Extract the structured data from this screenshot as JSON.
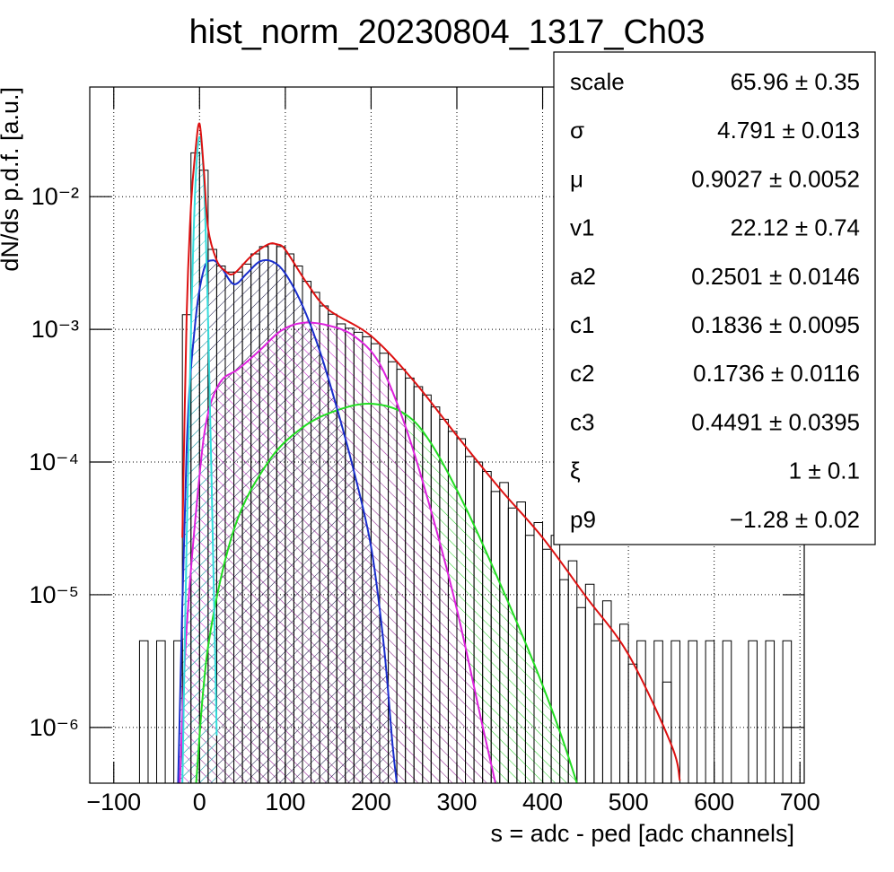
{
  "chart_data": {
    "type": "histogram-fit",
    "title": "hist_norm_20230804_1317_Ch03",
    "x_label": "s = adc - ped [adc channels]",
    "y_label": "dN/ds p.d.f. [a.u.]",
    "log_y": true,
    "grid": true,
    "xlim": [
      -128,
      705
    ],
    "ylim": [
      3.8e-07,
      0.067
    ],
    "xticks": [
      {
        "value": -100,
        "label": "−100"
      },
      0,
      100,
      200,
      300,
      400,
      500,
      600,
      700
    ],
    "yticks": [
      {
        "value": 1e-06,
        "label": "10⁻⁶"
      },
      {
        "value": 1e-05,
        "label": "10⁻⁵"
      },
      {
        "value": 0.0001,
        "label": "10⁻⁴"
      },
      {
        "value": 0.001,
        "label": "10⁻³"
      },
      {
        "value": 0.01,
        "label": "10⁻²"
      }
    ],
    "histogram": {
      "color": "#000000",
      "bins": [
        -130,
        -120,
        -110,
        -100,
        -90,
        -80,
        -70,
        -60,
        -50,
        -40,
        -30,
        -20,
        -10,
        0,
        10,
        20,
        30,
        40,
        50,
        60,
        70,
        80,
        90,
        100,
        110,
        120,
        130,
        140,
        150,
        160,
        170,
        180,
        190,
        200,
        210,
        220,
        230,
        240,
        250,
        260,
        270,
        280,
        290,
        300,
        310,
        320,
        330,
        340,
        350,
        360,
        370,
        380,
        390,
        400,
        410,
        420,
        430,
        440,
        450,
        460,
        470,
        480,
        490,
        500,
        510,
        520,
        530,
        540,
        550,
        560,
        570,
        580,
        590,
        600,
        610,
        620,
        630,
        640,
        650,
        660,
        670,
        680,
        690,
        700
      ],
      "values": [
        null,
        null,
        null,
        null,
        null,
        null,
        4.5e-06,
        null,
        4.5e-06,
        null,
        4.5e-06,
        0.00129,
        0.0214,
        0.0158,
        0.004,
        0.003,
        0.0027,
        0.0027,
        0.0031,
        0.0037,
        0.0042,
        0.0044,
        0.0042,
        0.0037,
        0.003,
        0.0023,
        0.0019,
        0.0015,
        0.0013,
        0.0011,
        0.00102,
        0.00095,
        0.00088,
        0.00078,
        0.00066,
        0.00057,
        0.0005,
        0.00043,
        0.00037,
        0.00032,
        0.00026,
        0.00021,
        0.00017,
        0.00015,
        0.00011,
        0.0001,
        8.5e-05,
        6e-05,
        7e-05,
        4.5e-05,
        5e-05,
        2.8e-05,
        3.5e-05,
        2.2e-05,
        2.8e-05,
        1.3e-05,
        1.8e-05,
        8e-06,
        1.2e-05,
        6e-06,
        9e-06,
        4.5e-06,
        6e-06,
        3e-06,
        4.5e-06,
        null,
        4.5e-06,
        2.2e-06,
        4.5e-06,
        null,
        4.5e-06,
        null,
        4.5e-06,
        null,
        4.5e-06,
        null,
        null,
        4.5e-06,
        null,
        4.5e-06,
        null,
        4.5e-06,
        null
      ]
    },
    "series": [
      {
        "color": "#22dd22",
        "hatch_color": "#22cc22",
        "hatch_angle": -45,
        "x": [
          -4,
          10,
          40,
          80,
          120,
          160,
          200,
          240,
          270,
          310,
          350,
          390,
          420,
          440
        ],
        "values": [
          3.8e-07,
          4.07e-06,
          3.09e-05,
          0.0001,
          0.000182,
          0.000245,
          0.000275,
          0.000229,
          0.000138,
          4.57e-05,
          1.23e-05,
          3.02e-06,
          9.33e-07,
          3.8e-07
        ]
      },
      {
        "color": "#dd22dd",
        "hatch_color": "#cc22cc",
        "hatch_angle": -45,
        "x": [
          -23,
          -15,
          0,
          10,
          25,
          45,
          70,
          95,
          120,
          150,
          180,
          210,
          240,
          270,
          300,
          330,
          345
        ],
        "values": [
          3.8e-07,
          5.62e-06,
          7.94e-05,
          0.000234,
          0.000407,
          0.000501,
          0.000692,
          0.000977,
          0.00112,
          0.00107,
          0.000891,
          0.00055,
          0.000186,
          4.27e-05,
          7.76e-06,
          1.02e-06,
          3.8e-07
        ]
      },
      {
        "color": "#1a2ecc",
        "hatch_color": "#1a1a4a",
        "hatch_angle": 45,
        "x": [
          -25,
          -15,
          -5,
          5,
          15,
          25,
          40,
          55,
          70,
          85,
          100,
          120,
          140,
          160,
          180,
          200,
          215,
          225,
          230
        ],
        "values": [
          3.8e-07,
          0.000126,
          0.00112,
          0.00282,
          0.00331,
          0.00295,
          0.00219,
          0.00263,
          0.00324,
          0.00324,
          0.00263,
          0.00151,
          0.000692,
          0.000257,
          8.51e-05,
          2.29e-05,
          4.07e-06,
          7.41e-07,
          3.8e-07
        ]
      },
      {
        "color": "#33dddd",
        "hatch_color": "#33cccc",
        "hatch_angle": 45,
        "x": [
          -20,
          -15,
          -10,
          -5,
          0,
          5,
          10,
          15,
          20
        ],
        "values": [
          3.8e-07,
          2.69e-05,
          0.000955,
          0.0115,
          0.0282,
          0.0135,
          0.00112,
          3.63e-05,
          8.71e-07
        ]
      },
      {
        "color": "#dd1111",
        "x": [
          -20,
          -15,
          -10,
          -5,
          0,
          5,
          10,
          20,
          30,
          40,
          60,
          80,
          90,
          100,
          125,
          150,
          200,
          250,
          300,
          350,
          400,
          450,
          500,
          550,
          560
        ],
        "values": [
          2.69e-05,
          0.00129,
          0.00851,
          0.0214,
          0.0355,
          0.0158,
          0.00575,
          0.00331,
          0.00275,
          0.00263,
          0.00355,
          0.00437,
          0.00437,
          0.00398,
          0.00224,
          0.00141,
          0.000891,
          0.000407,
          0.000158,
          6.31e-05,
          2.69e-05,
          9.77e-06,
          3.55e-06,
          7.41e-07,
          3.98e-07
        ]
      }
    ],
    "stats": [
      {
        "name": "scale",
        "value": "65.96 ± 0.35"
      },
      {
        "name": "σ",
        "value": "4.791 ± 0.013"
      },
      {
        "name": "μ",
        "value": "0.9027 ± 0.0052"
      },
      {
        "name": "v1",
        "value": "22.12 ± 0.74"
      },
      {
        "name": "a2",
        "value": "0.2501 ± 0.0146"
      },
      {
        "name": "c1",
        "value": "0.1836 ± 0.0095"
      },
      {
        "name": "c2",
        "value": "0.1736 ± 0.0116"
      },
      {
        "name": "c3",
        "value": "0.4491 ± 0.0395"
      },
      {
        "name": "ξ",
        "value": "1 ± 0.1"
      },
      {
        "name": "p9",
        "value": "−1.28 ± 0.02"
      }
    ]
  }
}
